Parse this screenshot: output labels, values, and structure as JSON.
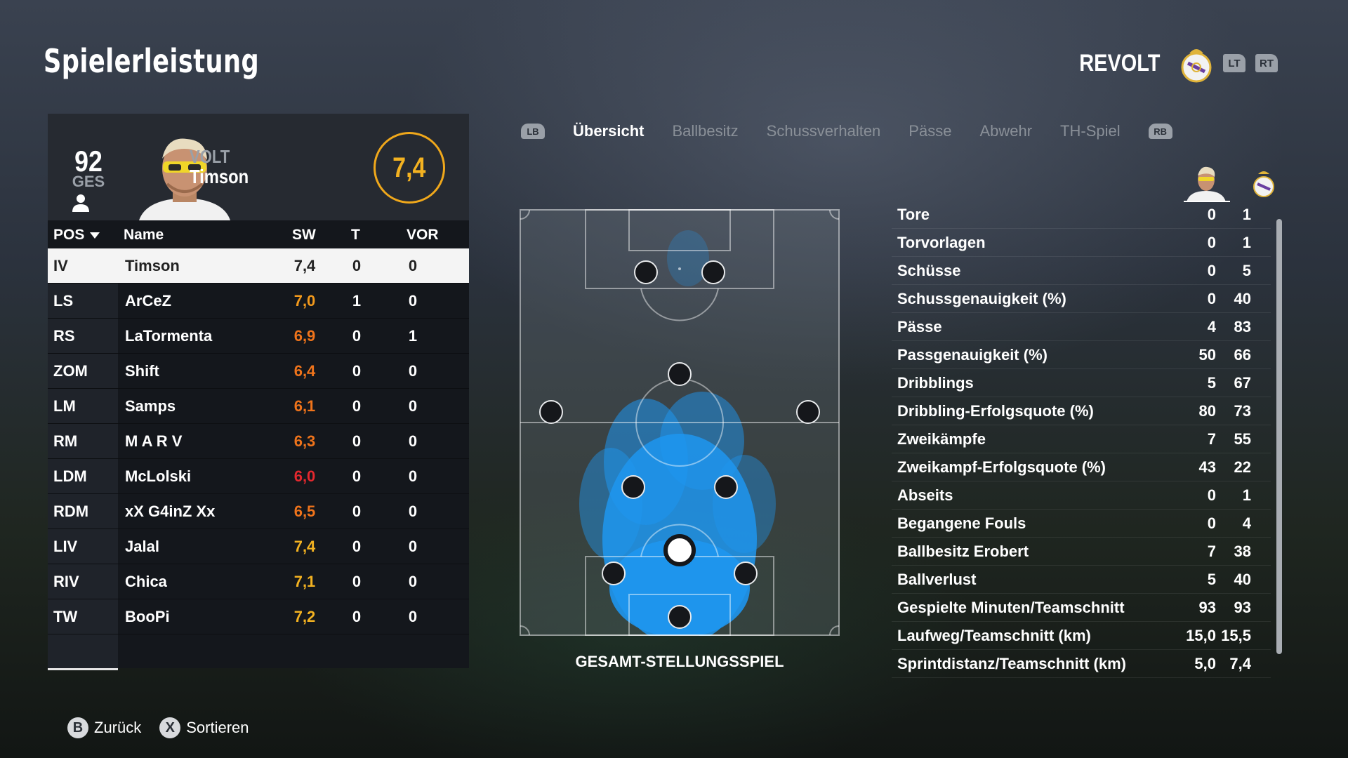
{
  "page_title": "Spielerleistung",
  "team": {
    "name": "REVOLT",
    "crest_icon": "real-madrid-crest-icon",
    "triggers": [
      "LT",
      "RT"
    ]
  },
  "player_card": {
    "overall": "92",
    "overall_label": "GES",
    "club_tag": "VOLT",
    "name": "Timson",
    "rating": "7,4"
  },
  "table": {
    "headers": {
      "pos": "POS",
      "name": "Name",
      "sw": "SW",
      "t": "T",
      "vor": "VOR"
    },
    "rows": [
      {
        "pos": "IV",
        "name": "Timson",
        "sw": "7,4",
        "t": "0",
        "vor": "0",
        "sw_color": "#222222"
      },
      {
        "pos": "LS",
        "name": "ArCeZ",
        "sw": "7,0",
        "t": "1",
        "vor": "0",
        "sw_color": "#f39a1c"
      },
      {
        "pos": "RS",
        "name": "LaTormenta",
        "sw": "6,9",
        "t": "0",
        "vor": "1",
        "sw_color": "#f0741b"
      },
      {
        "pos": "ZOM",
        "name": "Shift",
        "sw": "6,4",
        "t": "0",
        "vor": "0",
        "sw_color": "#f0741b"
      },
      {
        "pos": "LM",
        "name": "Samps",
        "sw": "6,1",
        "t": "0",
        "vor": "0",
        "sw_color": "#f0741b"
      },
      {
        "pos": "RM",
        "name": "M A R V",
        "sw": "6,3",
        "t": "0",
        "vor": "0",
        "sw_color": "#f0741b"
      },
      {
        "pos": "LDM",
        "name": "McLolski",
        "sw": "6,0",
        "t": "0",
        "vor": "0",
        "sw_color": "#e4282e"
      },
      {
        "pos": "RDM",
        "name": "xX G4inZ Xx",
        "sw": "6,5",
        "t": "0",
        "vor": "0",
        "sw_color": "#f0741b"
      },
      {
        "pos": "LIV",
        "name": "Jalal",
        "sw": "7,4",
        "t": "0",
        "vor": "0",
        "sw_color": "#f3b221"
      },
      {
        "pos": "RIV",
        "name": "Chica",
        "sw": "7,1",
        "t": "0",
        "vor": "0",
        "sw_color": "#f3b221"
      },
      {
        "pos": "TW",
        "name": "BooPi",
        "sw": "7,2",
        "t": "0",
        "vor": "0",
        "sw_color": "#f3b221"
      }
    ]
  },
  "tabs": {
    "left_bumper": "LB",
    "right_bumper": "RB",
    "items": [
      "Übersicht",
      "Ballbesitz",
      "Schussverhalten",
      "Pässe",
      "Abwehr",
      "TH-Spiel"
    ],
    "active_index": 0
  },
  "pitch": {
    "caption": "GESAMT-STELLUNGSSPIEL",
    "heat_color": "#1e96f0"
  },
  "stats": {
    "rows": [
      {
        "label": "Tore",
        "player": "0",
        "team": "1"
      },
      {
        "label": "Torvorlagen",
        "player": "0",
        "team": "1"
      },
      {
        "label": "Schüsse",
        "player": "0",
        "team": "5"
      },
      {
        "label": "Schussgenauigkeit (%)",
        "player": "0",
        "team": "40"
      },
      {
        "label": "Pässe",
        "player": "4",
        "team": "83"
      },
      {
        "label": "Passgenauigkeit (%)",
        "player": "50",
        "team": "66"
      },
      {
        "label": "Dribblings",
        "player": "5",
        "team": "67"
      },
      {
        "label": "Dribbling-Erfolgsquote (%)",
        "player": "80",
        "team": "73"
      },
      {
        "label": "Zweikämpfe",
        "player": "7",
        "team": "55"
      },
      {
        "label": "Zweikampf-Erfolgsquote (%)",
        "player": "43",
        "team": "22"
      },
      {
        "label": "Abseits",
        "player": "0",
        "team": "1"
      },
      {
        "label": "Begangene Fouls",
        "player": "0",
        "team": "4"
      },
      {
        "label": "Ballbesitz Erobert",
        "player": "7",
        "team": "38"
      },
      {
        "label": "Ballverlust",
        "player": "5",
        "team": "40"
      },
      {
        "label": "Gespielte Minuten/Teamschnitt",
        "player": "93",
        "team": "93"
      },
      {
        "label": "Laufweg/Teamschnitt (km)",
        "player": "15,0",
        "team": "15,5"
      },
      {
        "label": "Sprintdistanz/Teamschnitt (km)",
        "player": "5,0",
        "team": "7,4"
      }
    ]
  },
  "footer": {
    "back": {
      "glyph": "B",
      "label": "Zurück"
    },
    "sort": {
      "glyph": "X",
      "label": "Sortieren"
    }
  }
}
